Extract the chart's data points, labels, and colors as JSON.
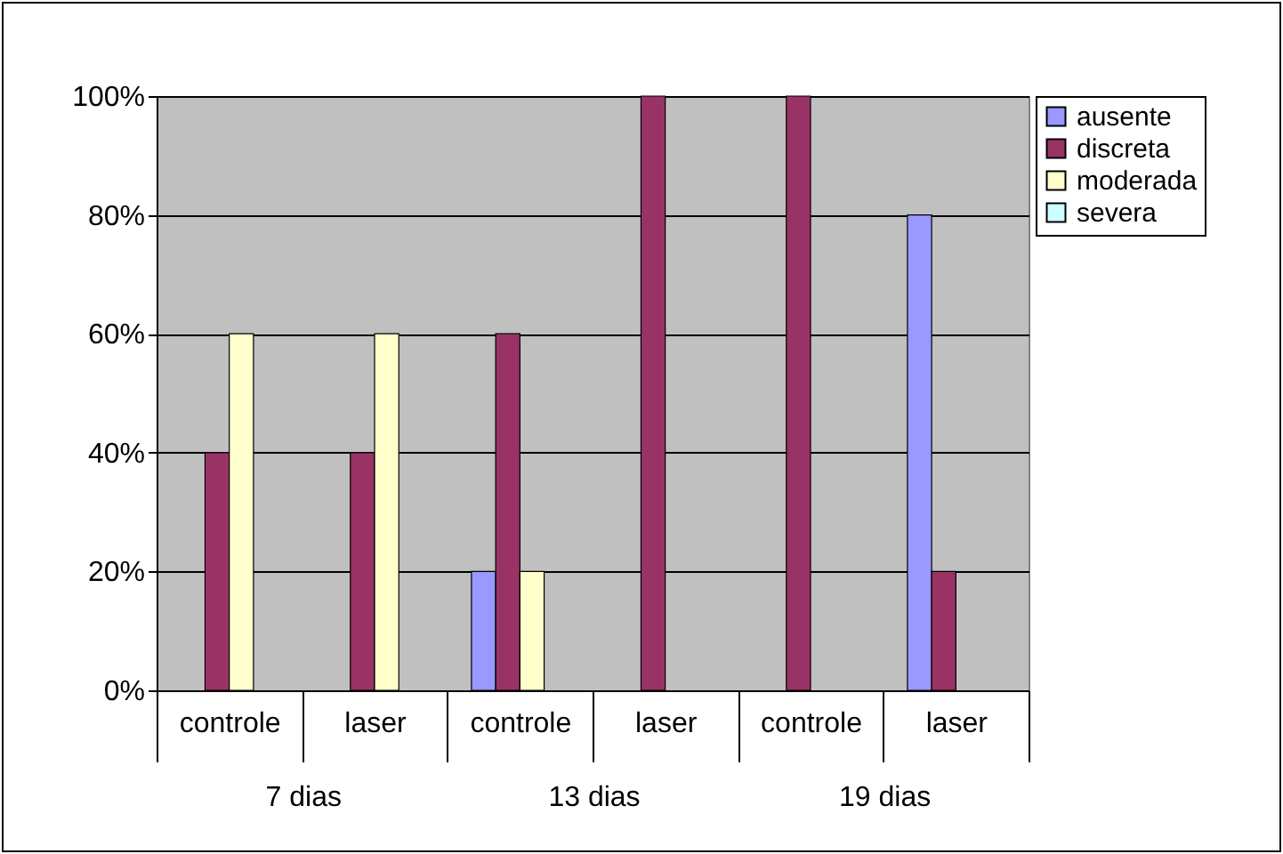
{
  "chart_data": {
    "type": "bar",
    "categories": [
      "controle",
      "laser",
      "controle",
      "laser",
      "controle",
      "laser"
    ],
    "annotations": [
      "7 dias",
      "13 dias",
      "19 dias"
    ],
    "series": [
      {
        "name": "ausente",
        "color": "#9999ff",
        "values": [
          0,
          0,
          20,
          0,
          0,
          80
        ]
      },
      {
        "name": "discreta",
        "color": "#993366",
        "values": [
          40,
          40,
          60,
          100,
          100,
          20
        ]
      },
      {
        "name": "moderada",
        "color": "#ffffcc",
        "values": [
          60,
          60,
          20,
          0,
          0,
          0
        ]
      },
      {
        "name": "severa",
        "color": "#ccffff",
        "values": [
          0,
          0,
          0,
          0,
          0,
          0
        ]
      }
    ],
    "ylim": [
      0,
      100
    ],
    "yticks": [
      {
        "value": 0,
        "label": "0%"
      },
      {
        "value": 20,
        "label": "20%"
      },
      {
        "value": 40,
        "label": "40%"
      },
      {
        "value": 60,
        "label": "60%"
      },
      {
        "value": 80,
        "label": "80%"
      },
      {
        "value": 100,
        "label": "100%"
      }
    ],
    "grid": "y",
    "legend": "right"
  }
}
